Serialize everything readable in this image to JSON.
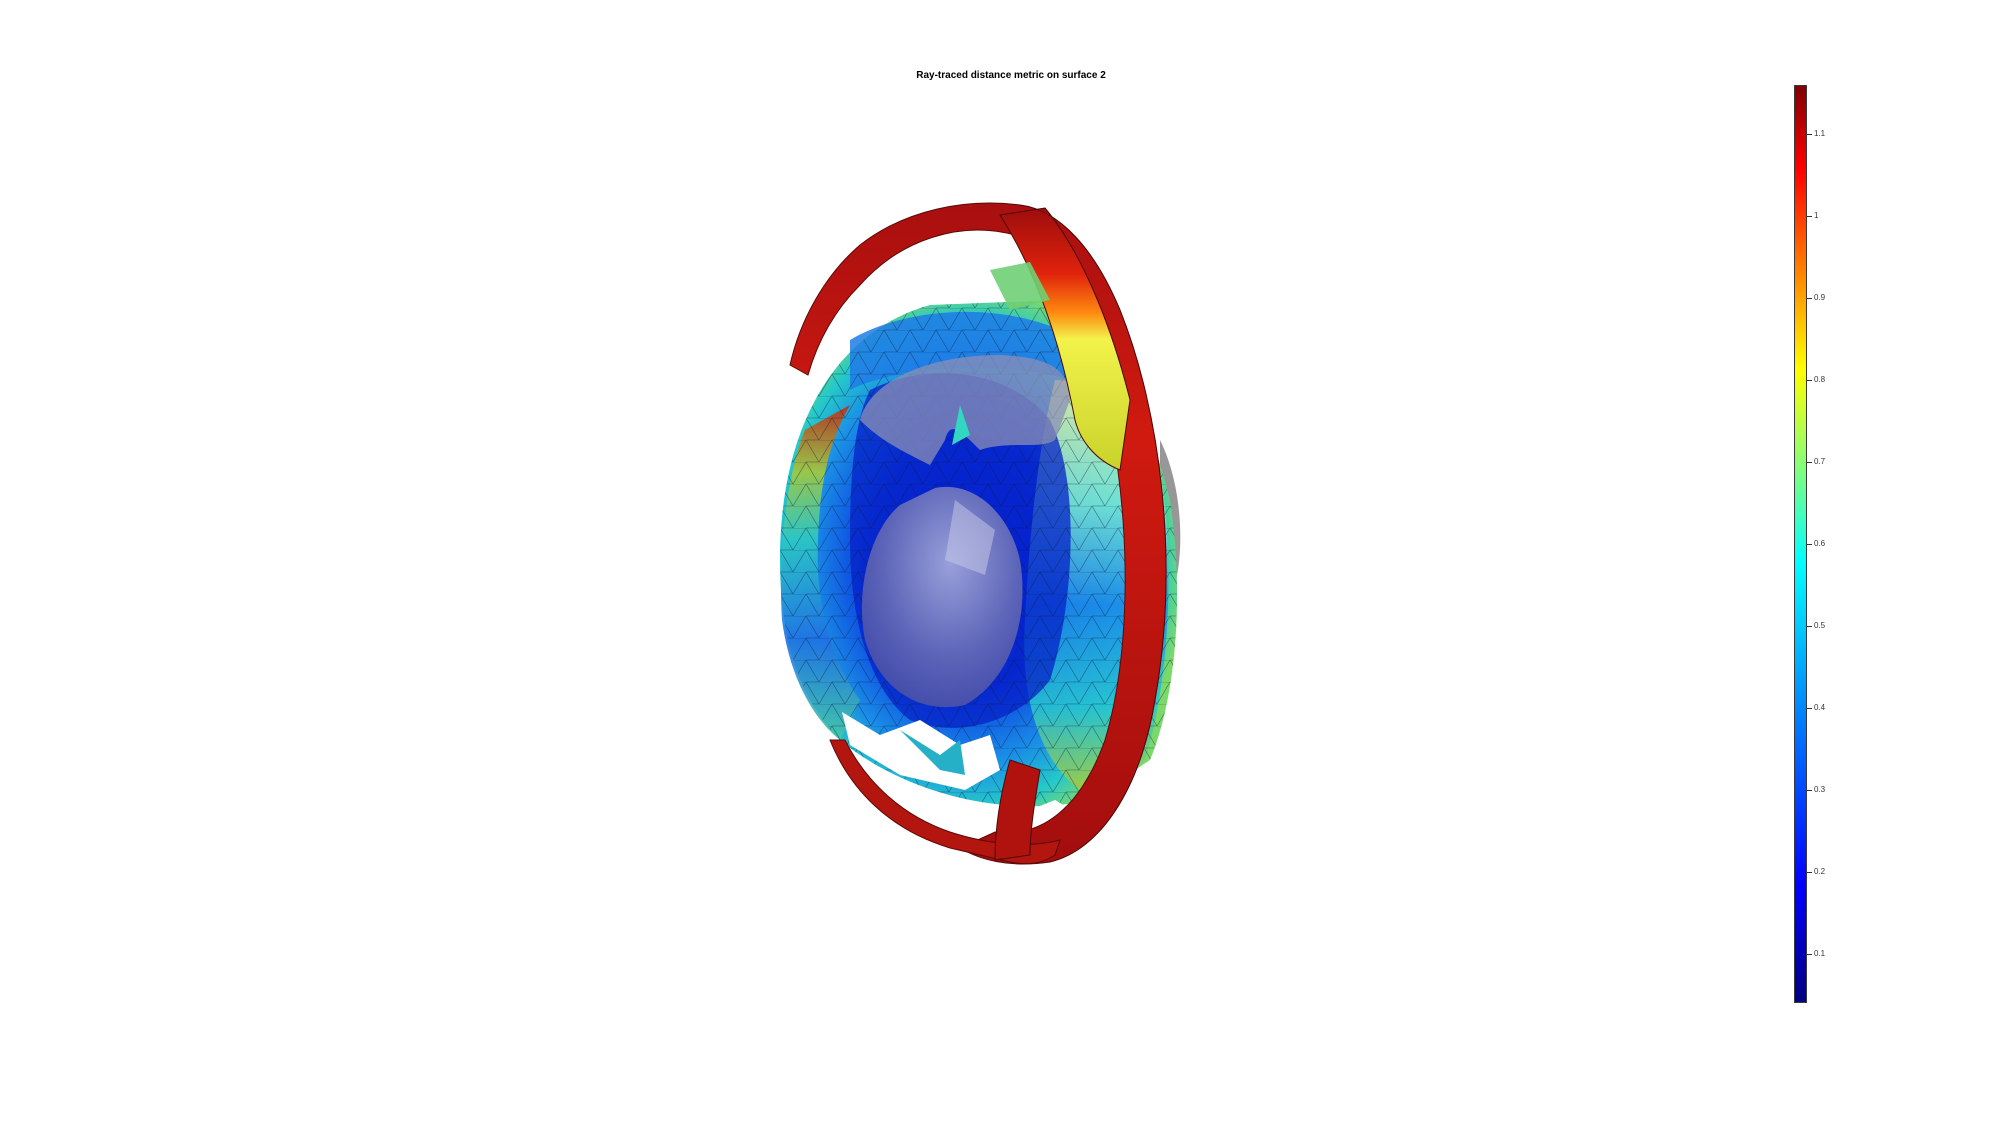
{
  "title": "Ray-traced distance metric on surface 2",
  "colors": {
    "background": "#ffffff",
    "inner_surface": "#8a8fb8",
    "outer_gray": "#8c8c8c"
  },
  "colorbar": {
    "colormap": "jet",
    "range": [
      0.04,
      1.16
    ],
    "ticks": [
      {
        "value": 1.1,
        "label": "1.1"
      },
      {
        "value": 1.0,
        "label": "1"
      },
      {
        "value": 0.9,
        "label": "0.9"
      },
      {
        "value": 0.8,
        "label": "0.8"
      },
      {
        "value": 0.7,
        "label": "0.7"
      },
      {
        "value": 0.6,
        "label": "0.6"
      },
      {
        "value": 0.5,
        "label": "0.5"
      },
      {
        "value": 0.4,
        "label": "0.4"
      },
      {
        "value": 0.3,
        "label": "0.3"
      },
      {
        "value": 0.2,
        "label": "0.2"
      },
      {
        "value": 0.1,
        "label": "0.1"
      }
    ]
  }
}
